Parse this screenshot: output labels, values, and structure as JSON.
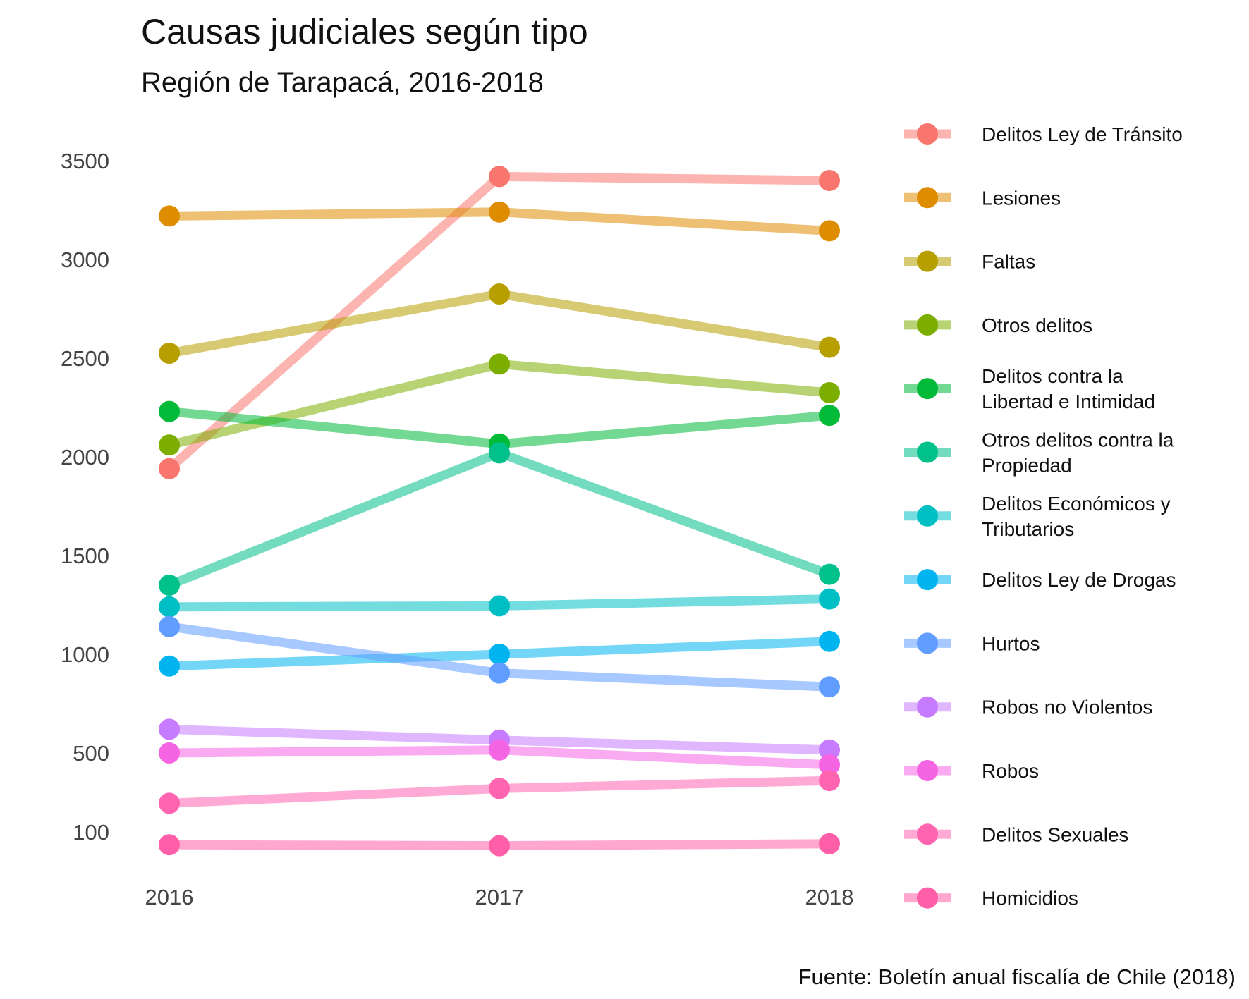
{
  "chart_data": {
    "type": "line",
    "title": "Causas judiciales según tipo",
    "subtitle": "Región de Tarapacá, 2016-2018",
    "caption": "Fuente: Boletín anual fiscalía de Chile (2018)",
    "xlabel": "",
    "ylabel": "",
    "x": [
      "2016",
      "2017",
      "2018"
    ],
    "x_tick_labels": [
      "2016",
      "2017",
      "2018"
    ],
    "y_ticks": [
      100,
      500,
      1000,
      1500,
      2000,
      2500,
      3000,
      3500
    ],
    "y_tick_labels": [
      "100",
      "500",
      "1000",
      "1500",
      "2000",
      "2500",
      "3000",
      "3500"
    ],
    "ylim": [
      0,
      3700
    ],
    "grid": false,
    "legend_position": "right",
    "series": [
      {
        "name": "Delitos Ley de Tránsito",
        "name_lines": [
          "Delitos Ley de Tránsito"
        ],
        "color": "#F8766D",
        "values": [
          1940,
          3420,
          3400
        ]
      },
      {
        "name": "Lesiones",
        "name_lines": [
          "Lesiones"
        ],
        "color": "#DE8C00",
        "values": [
          3220,
          3240,
          3145
        ]
      },
      {
        "name": "Faltas",
        "name_lines": [
          "Faltas"
        ],
        "color": "#B79F00",
        "values": [
          2525,
          2825,
          2555
        ]
      },
      {
        "name": "Otros delitos",
        "name_lines": [
          "Otros delitos"
        ],
        "color": "#7CAE00",
        "values": [
          2060,
          2470,
          2325
        ]
      },
      {
        "name": "Delitos contra la Libertad e Intimidad",
        "name_lines": [
          "Delitos contra la",
          "Libertad e Intimidad"
        ],
        "color": "#00BA38",
        "values": [
          2230,
          2065,
          2210
        ]
      },
      {
        "name": "Otros delitos contra la Propiedad",
        "name_lines": [
          "Otros delitos contra la",
          "Propiedad"
        ],
        "color": "#00C08B",
        "values": [
          1350,
          2020,
          1405
        ]
      },
      {
        "name": "Delitos Económicos y Tributarios",
        "name_lines": [
          "Delitos Económicos y",
          "Tributarios"
        ],
        "color": "#00BFC4",
        "values": [
          1240,
          1245,
          1280
        ]
      },
      {
        "name": "Delitos Ley de Drogas",
        "name_lines": [
          "Delitos Ley de Drogas"
        ],
        "color": "#00B4F0",
        "values": [
          940,
          1000,
          1065
        ]
      },
      {
        "name": "Hurtos",
        "name_lines": [
          "Hurtos"
        ],
        "color": "#619CFF",
        "values": [
          1140,
          905,
          835
        ]
      },
      {
        "name": "Robos no Violentos",
        "name_lines": [
          "Robos no Violentos"
        ],
        "color": "#C77CFF",
        "values": [
          620,
          565,
          515
        ]
      },
      {
        "name": "Robos",
        "name_lines": [
          "Robos"
        ],
        "color": "#F564E3",
        "values": [
          500,
          515,
          440
        ]
      },
      {
        "name": "Delitos Sexuales",
        "name_lines": [
          "Delitos Sexuales"
        ],
        "color": "#FF64B0",
        "values": [
          245,
          320,
          360
        ]
      },
      {
        "name": "Homicidios",
        "name_lines": [
          "Homicidios"
        ],
        "color": "#FF5EA8",
        "values": [
          35,
          30,
          40
        ]
      }
    ]
  }
}
